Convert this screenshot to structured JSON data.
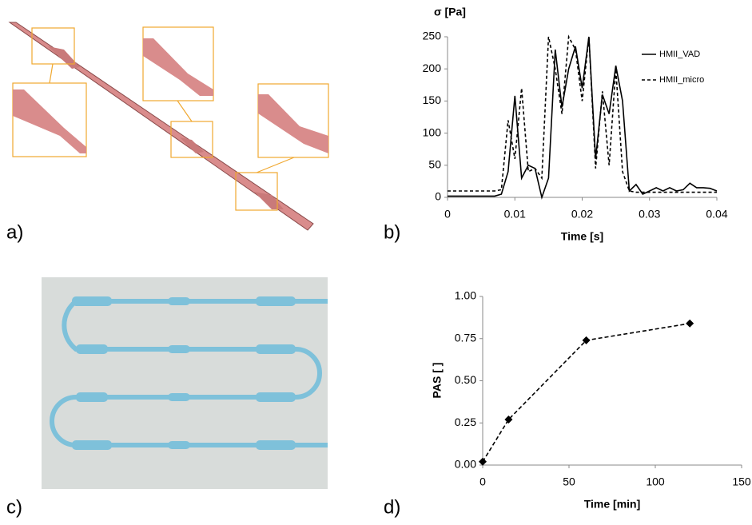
{
  "panels": [
    "a)",
    "b)",
    "c)",
    "d)"
  ],
  "chart_data": [
    {
      "type": "line",
      "y_label": "σ [Pa]",
      "x_label": "Time [s]",
      "x": [
        0,
        0.001,
        0.002,
        0.003,
        0.004,
        0.005,
        0.006,
        0.007,
        0.008,
        0.009,
        0.01,
        0.011,
        0.012,
        0.013,
        0.014,
        0.015,
        0.016,
        0.017,
        0.018,
        0.019,
        0.02,
        0.021,
        0.022,
        0.023,
        0.024,
        0.025,
        0.026,
        0.027,
        0.028,
        0.029,
        0.03,
        0.031,
        0.032,
        0.033,
        0.034,
        0.035,
        0.036,
        0.037,
        0.038,
        0.039,
        0.04
      ],
      "series": [
        {
          "name": "HMII_VAD",
          "color": "#000000",
          "dash": false,
          "values": [
            2,
            2,
            2,
            2,
            2,
            2,
            2,
            2,
            5,
            40,
            158,
            30,
            50,
            45,
            0,
            30,
            230,
            140,
            200,
            235,
            170,
            250,
            60,
            160,
            130,
            205,
            150,
            10,
            20,
            5,
            10,
            15,
            10,
            15,
            10,
            12,
            22,
            15,
            15,
            14,
            10
          ]
        },
        {
          "name": "HMII_micro",
          "color": "#000000",
          "dash": true,
          "values": [
            10,
            10,
            10,
            10,
            10,
            10,
            10,
            10,
            12,
            120,
            60,
            170,
            40,
            45,
            30,
            250,
            200,
            130,
            250,
            230,
            150,
            250,
            45,
            165,
            50,
            200,
            40,
            10,
            8,
            8,
            8,
            8,
            8,
            8,
            8,
            8,
            8,
            8,
            8,
            8,
            8
          ]
        }
      ],
      "xlim": [
        0,
        0.04
      ],
      "xticks": [
        0,
        0.01,
        0.02,
        0.03,
        0.04
      ],
      "ylim": [
        0,
        250
      ],
      "yticks": [
        0,
        50,
        100,
        150,
        200,
        250
      ],
      "legend": "top-right"
    },
    {
      "type": "scatter-line",
      "y_label": "PAS [ ]",
      "x_label": "Time [min]",
      "x": [
        0,
        15,
        60,
        120
      ],
      "values": [
        0.02,
        0.27,
        0.74,
        0.84
      ],
      "color": "#000000",
      "dash": true,
      "xlim": [
        0,
        150
      ],
      "xticks": [
        0,
        50,
        100,
        150
      ],
      "ylim": [
        0,
        1
      ],
      "yticks": [
        {
          "value": 0,
          "label": "0.00"
        },
        0.25,
        {
          "value": 0.5,
          "label": "0.50"
        },
        0.75,
        {
          "value": 1,
          "label": "1.00"
        }
      ]
    }
  ]
}
